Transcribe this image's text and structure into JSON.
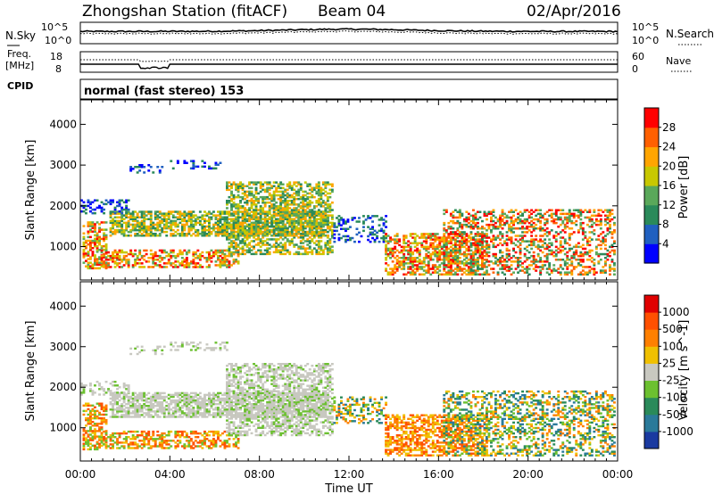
{
  "header": {
    "station": "Zhongshan Station (fitACF)",
    "beam": "Beam 04",
    "date": "02/Apr/2016"
  },
  "small_panels": {
    "nsky_label": "N.Sky",
    "nsky_ticks": [
      "10^5",
      "10^0"
    ],
    "nsearch_label": "N.Search",
    "nsearch_ticks": [
      "10^5",
      "10^0"
    ],
    "freq_label": "Freq.",
    "freq_unit": "[MHz]",
    "freq_ticks": [
      "18",
      "8"
    ],
    "nave_label": "Nave",
    "nave_ticks": [
      "60",
      "0"
    ],
    "cpid_label": "CPID",
    "cpid_text": "normal (fast stereo) 153"
  },
  "chart_data": [
    {
      "type": "heatmap",
      "name": "power",
      "ylabel": "Slant Range [km]",
      "y_ticks": [
        "4000",
        "3000",
        "2000",
        "1000"
      ],
      "ylim": [
        180,
        4600
      ],
      "colorbar_label": "Power [dB]",
      "colorbar_ticks": [
        "28",
        "24",
        "20",
        "16",
        "12",
        "8",
        "4"
      ],
      "colorbar_colors": [
        "#0000ff",
        "#2060c0",
        "#2a8a5a",
        "#5aa85a",
        "#c8c800",
        "#ffa500",
        "#ff6000",
        "#ff0000"
      ]
    },
    {
      "type": "heatmap",
      "name": "velocity",
      "ylabel": "Slant Range [km]",
      "y_ticks": [
        "4000",
        "3000",
        "2000",
        "1000"
      ],
      "ylim": [
        180,
        4600
      ],
      "colorbar_label": "Velocity [m s^-1]",
      "colorbar_ticks": [
        "1000",
        "500",
        "100",
        "25",
        "-25",
        "-100",
        "-500",
        "-1000"
      ],
      "colorbar_colors": [
        "#1a3aa0",
        "#2a7a9a",
        "#2a8a5a",
        "#6cc030",
        "#c8c8c0",
        "#f0c000",
        "#ff8000",
        "#ff5000",
        "#e00000"
      ]
    }
  ],
  "x_axis": {
    "label": "Time UT",
    "ticks": [
      "00:00",
      "04:00",
      "08:00",
      "12:00",
      "16:00",
      "20:00",
      "00:00"
    ]
  }
}
